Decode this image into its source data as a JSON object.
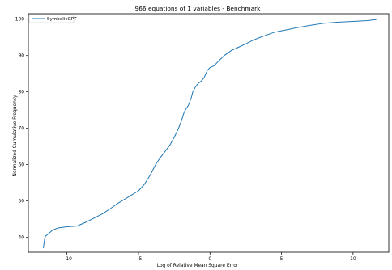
{
  "chart_data": {
    "type": "line",
    "title": "966 equations of 1 variables - Benchmark",
    "xlabel": "Log of Relative Mean Square Error",
    "ylabel": "Normalized Cumulative Frequency",
    "xlim": [
      -12.7,
      12.5
    ],
    "ylim": [
      35.9,
      101.5
    ],
    "xticks": [
      -10,
      -5,
      0,
      5,
      10
    ],
    "yticks": [
      40,
      50,
      60,
      70,
      80,
      90,
      100
    ],
    "xtick_labels": [
      "−10",
      "−5",
      "0",
      "5",
      "10"
    ],
    "ytick_labels": [
      "40",
      "50",
      "60",
      "70",
      "80",
      "90",
      "100"
    ],
    "grid": false,
    "legend_position": "top-left",
    "series": [
      {
        "name": "SymbolicGPT",
        "color": "#1f77b4",
        "x": [
          -11.65,
          -11.6,
          -11.55,
          -11.5,
          -11.3,
          -11.0,
          -10.6,
          -10.0,
          -9.3,
          -8.6,
          -8.0,
          -7.5,
          -7.0,
          -6.5,
          -6.0,
          -5.5,
          -5.0,
          -4.6,
          -4.2,
          -3.8,
          -3.5,
          -3.2,
          -2.8,
          -2.5,
          -2.2,
          -2.0,
          -1.8,
          -1.5,
          -1.3,
          -1.2,
          -1.0,
          -0.8,
          -0.6,
          -0.4,
          -0.2,
          0.0,
          0.3,
          0.6,
          1.0,
          1.5,
          2.0,
          2.5,
          3.0,
          3.5,
          4.0,
          4.5,
          5.0,
          5.5,
          6.0,
          7.0,
          8.0,
          9.0,
          10.0,
          11.0,
          11.6,
          11.7
        ],
        "y": [
          37.0,
          38.5,
          39.8,
          40.3,
          41.0,
          42.0,
          42.6,
          42.9,
          43.1,
          44.3,
          45.5,
          46.5,
          47.8,
          49.2,
          50.4,
          51.6,
          52.8,
          54.5,
          57.0,
          60.0,
          61.8,
          63.3,
          65.4,
          67.5,
          70.0,
          72.0,
          74.5,
          76.4,
          78.5,
          80.0,
          81.5,
          82.4,
          83.0,
          84.0,
          85.8,
          86.7,
          87.2,
          88.5,
          90.0,
          91.4,
          92.3,
          93.2,
          94.2,
          95.0,
          95.7,
          96.4,
          96.8,
          97.2,
          97.6,
          98.3,
          98.9,
          99.2,
          99.4,
          99.6,
          99.9,
          100.0
        ]
      }
    ]
  }
}
